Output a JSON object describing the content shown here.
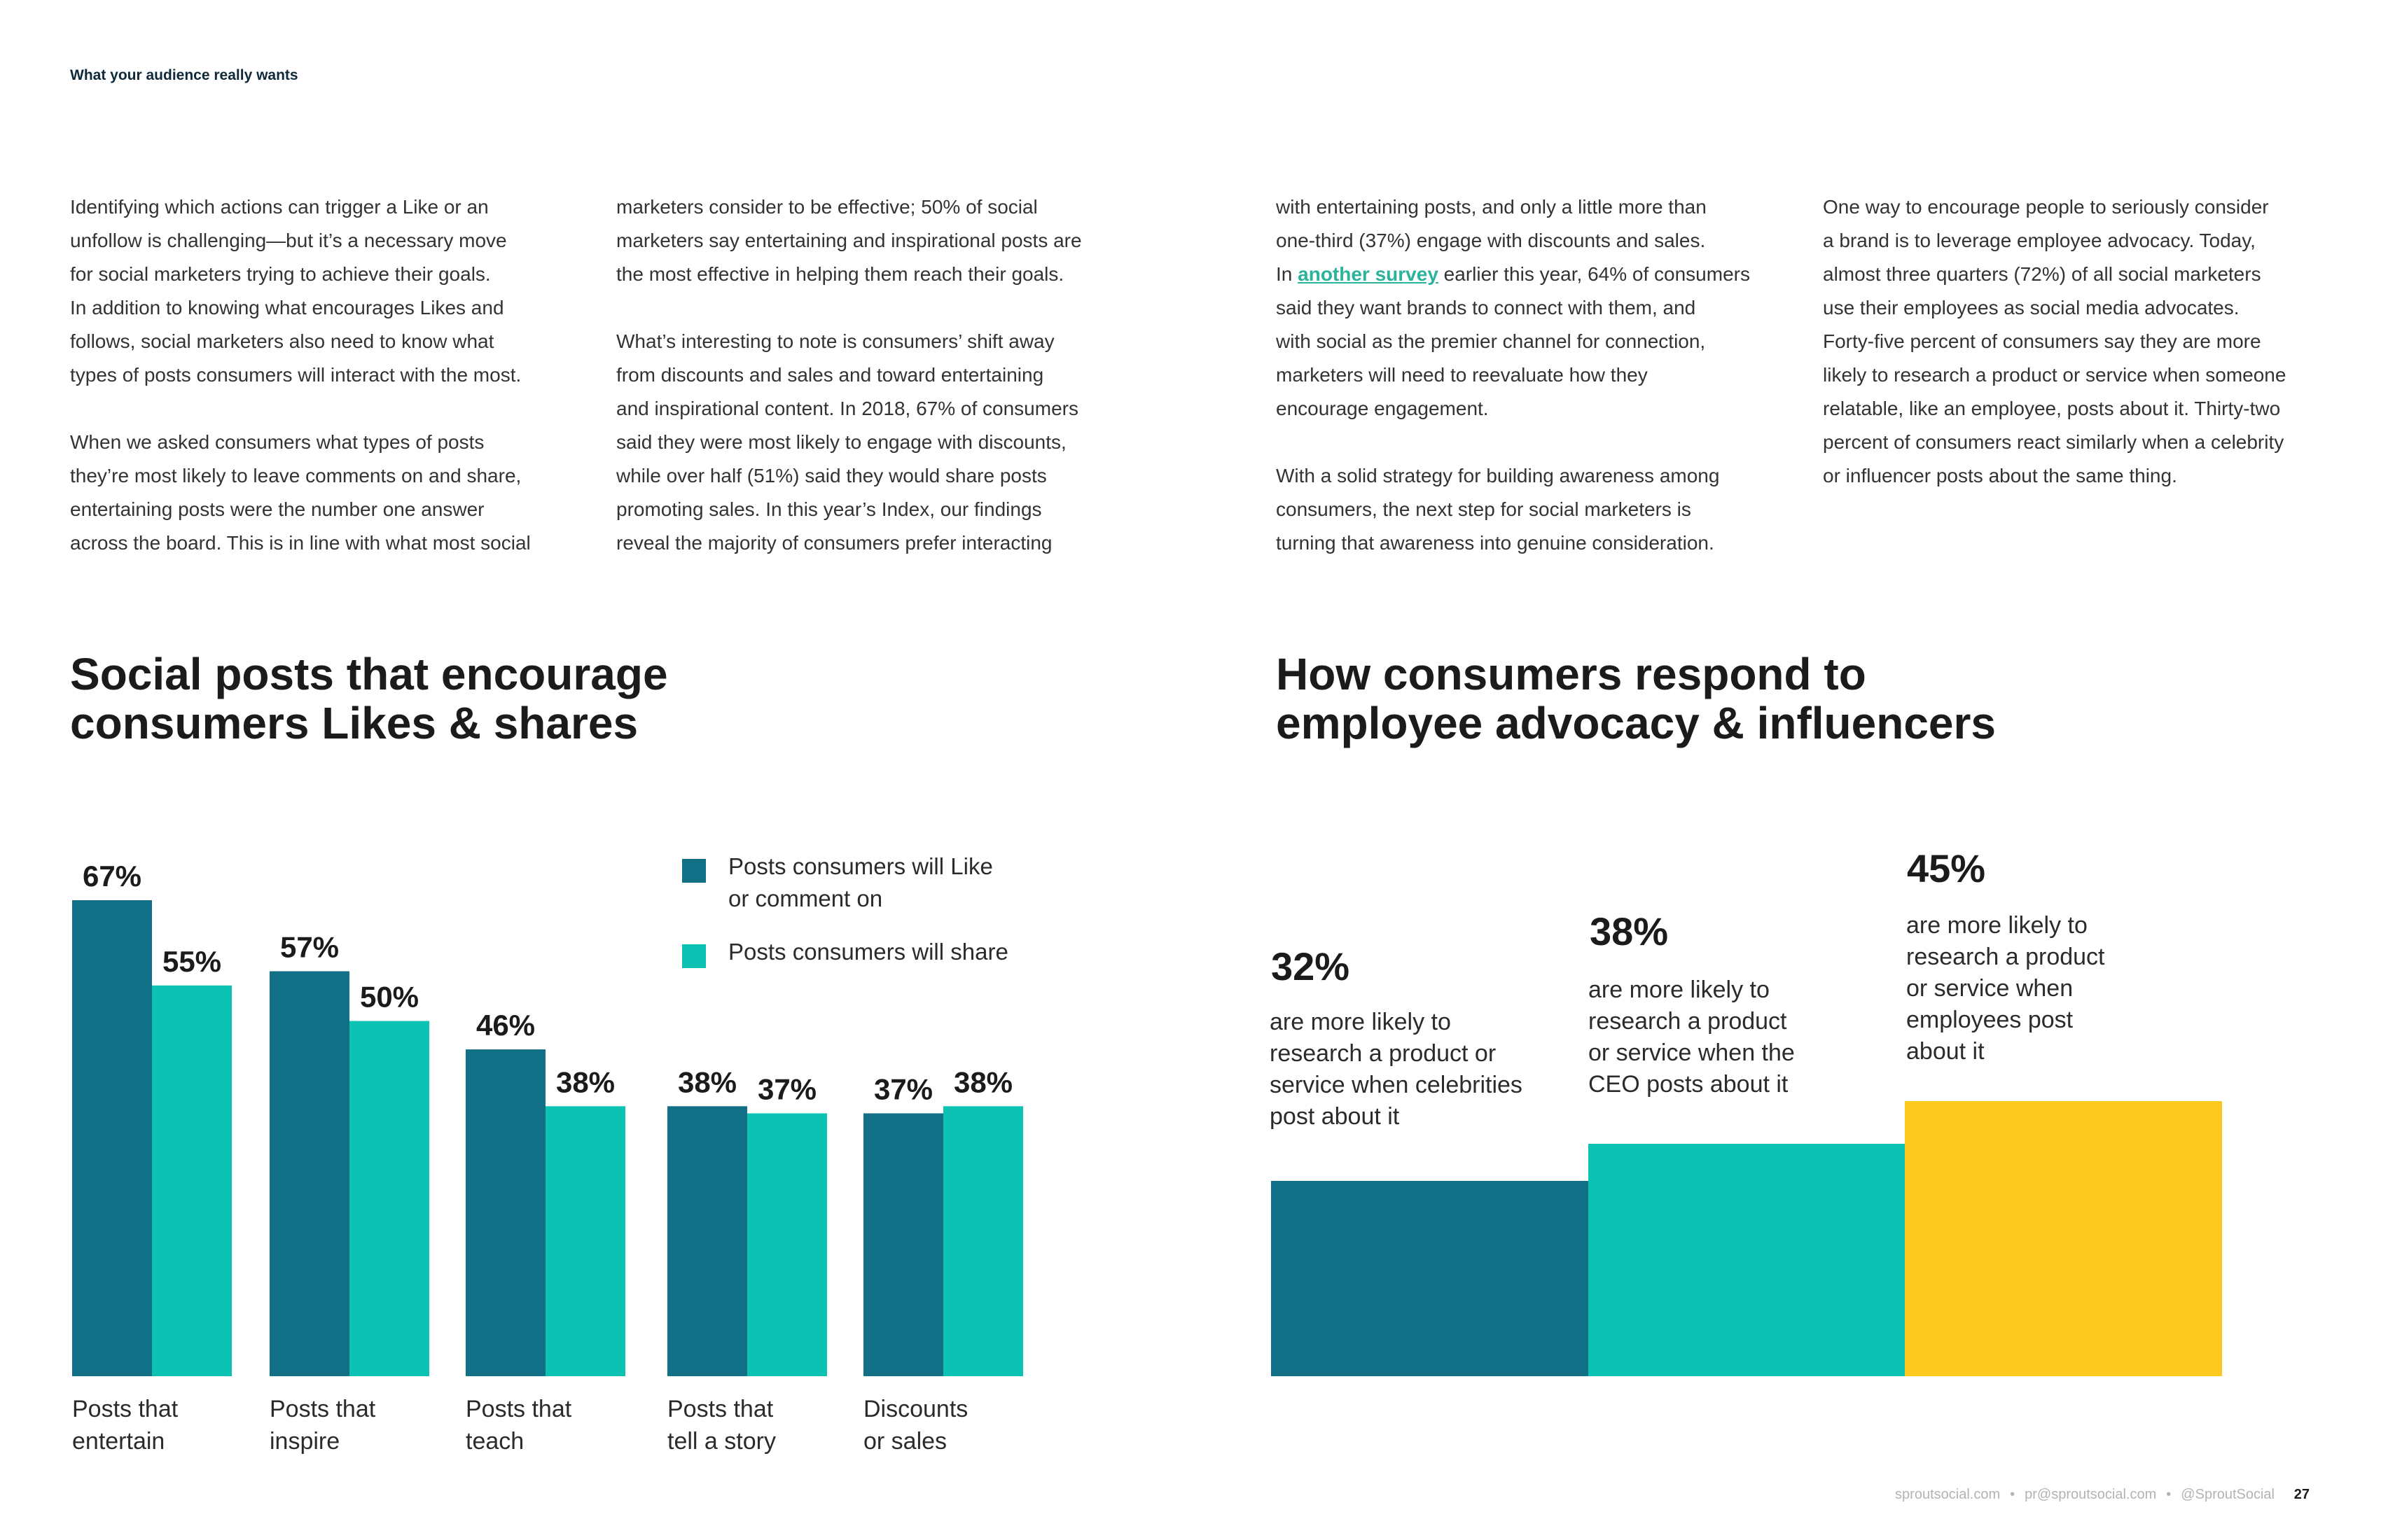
{
  "header": {
    "label": "What your audience really wants"
  },
  "columns": [
    {
      "paragraphs": [
        [
          "Identifying which actions can trigger a Like or an",
          "unfollow is challenging—but it’s a necessary move",
          "for social marketers trying to achieve their goals.",
          "In addition to knowing what encourages Likes and",
          "follows, social marketers also need to know what",
          "types of posts consumers will interact with the most."
        ],
        [
          "When we asked consumers what types of posts",
          "they’re most likely to leave comments on and share,",
          "entertaining posts were the number one answer",
          "across the board. This is in line with what most social"
        ]
      ]
    },
    {
      "paragraphs": [
        [
          "marketers consider to be effective; 50% of social",
          "marketers say entertaining and inspirational posts are",
          "the most effective in helping them reach their goals."
        ],
        [
          "What’s interesting to note is consumers’ shift away",
          "from discounts and sales and toward entertaining",
          "and inspirational content. In 2018, 67% of consumers",
          "said they were most likely to engage with discounts,",
          "while over half (51%) said they would share posts",
          "promoting sales. In this year’s Index, our findings",
          "reveal the majority of consumers prefer interacting"
        ]
      ]
    },
    {
      "p1_lines": [
        "with entertaining posts, and only a little more than",
        "one-third (37%) engage with discounts and sales."
      ],
      "p1_link_prefix": "In ",
      "p1_link_text": "another survey",
      "p1_link_suffix": " earlier this year, 64% of consumers",
      "p1_lines_after": [
        "said they want brands to connect with them, and",
        "with social as the premier channel for connection,",
        "marketers will need to reevaluate how they",
        "encourage engagement."
      ],
      "p2_lines": [
        "With a solid strategy for building awareness among",
        "consumers, the next step for social marketers is",
        "turning that awareness into genuine consideration."
      ]
    },
    {
      "paragraphs": [
        [
          "One way to encourage people to seriously consider",
          "a brand is to leverage employee advocacy. Today,",
          "almost three quarters (72%) of all social marketers",
          "use their employees as social media advocates.",
          "Forty-five percent of consumers say they are more",
          "likely to research a product or service when someone",
          "relatable, like an employee, posts about it. Thirty-two",
          "percent of consumers react similarly when a celebrity",
          "or influencer posts about the same thing."
        ]
      ]
    }
  ],
  "chart_left": {
    "title_lines": [
      "Social posts that encourage",
      "consumers Likes & shares"
    ]
  },
  "chart_right": {
    "title_lines": [
      "How consumers respond to",
      "employee advocacy & influencers"
    ]
  },
  "chart_data": [
    {
      "type": "bar",
      "title": "Social posts that encourage consumers Likes & shares",
      "categories": [
        [
          "Posts that",
          "entertain"
        ],
        [
          "Posts that",
          "inspire"
        ],
        [
          "Posts that",
          "teach"
        ],
        [
          "Posts that",
          "tell a story"
        ],
        [
          "Discounts",
          "or sales"
        ]
      ],
      "series": [
        {
          "name": "Posts consumers will Like or comment on",
          "name_lines": [
            "Posts consumers will Like",
            "or comment on"
          ],
          "color": "#117086",
          "values": [
            67,
            57,
            46,
            38,
            37
          ]
        },
        {
          "name": "Posts consumers will share",
          "name_lines": [
            "Posts consumers will share"
          ],
          "color": "#0bc2b3",
          "values": [
            55,
            50,
            38,
            37,
            38
          ]
        }
      ],
      "value_suffix": "%",
      "ylim": [
        0,
        67
      ],
      "legend": "top-right"
    },
    {
      "type": "bar",
      "title": "How consumers respond to employee advocacy & influencers",
      "values": [
        32,
        38,
        45
      ],
      "labels": [
        "32%",
        "38%",
        "45%"
      ],
      "descriptions": [
        [
          "are more likely to",
          "research a product or",
          "service when celebrities",
          "post about it"
        ],
        [
          "are more likely to",
          "research a product",
          "or service when the",
          "CEO posts about it"
        ],
        [
          "are more likely to",
          "research a product",
          "or service when",
          "employees post",
          "about it"
        ]
      ],
      "colors": [
        "#117086",
        "#0bc2b3",
        "#fcca1e"
      ]
    }
  ],
  "footer": {
    "site": "sproutsocial.com",
    "email": "pr@sproutsocial.com",
    "handle": "@SproutSocial",
    "page": "27"
  }
}
